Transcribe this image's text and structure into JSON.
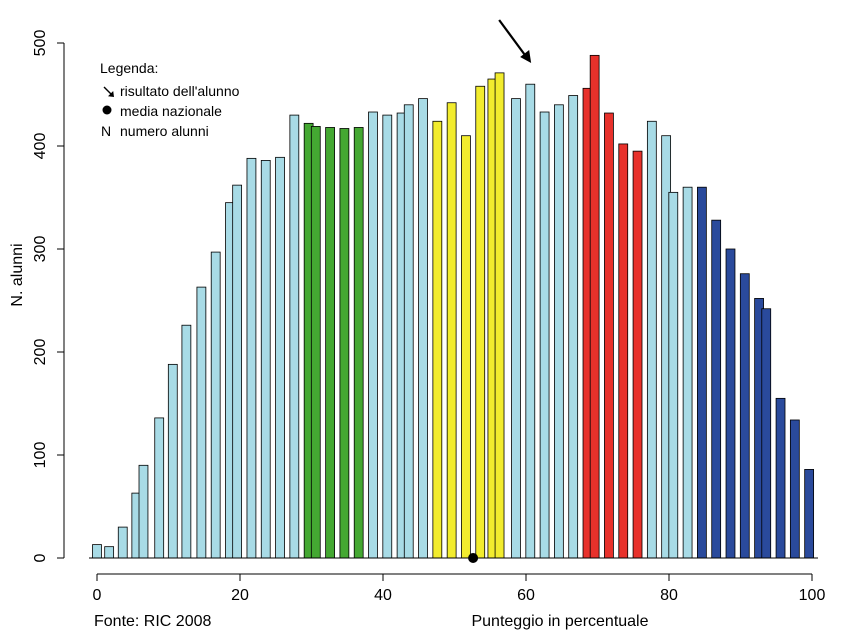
{
  "chart_data": {
    "type": "bar",
    "xlabel": "Punteggio in percentuale",
    "ylabel": "N. alunni",
    "source": "Fonte: RIC 2008",
    "xlim": [
      0,
      100
    ],
    "ylim": [
      0,
      500
    ],
    "x_ticks": [
      0,
      20,
      40,
      60,
      80,
      100
    ],
    "y_ticks": [
      0,
      100,
      200,
      300,
      400,
      500
    ],
    "bar_width_units": 1.25,
    "colors": {
      "lightblue": "#a8dbe6",
      "green": "#44a832",
      "yellow": "#f2ec2e",
      "red": "#e8312b",
      "darkblue": "#2a4a9c",
      "outline": "#000000"
    },
    "legend": {
      "title": "Legenda:",
      "items": [
        {
          "symbol": "arrow",
          "label": "risultato dell'alunno"
        },
        {
          "symbol": "dot",
          "label": "media nazionale"
        },
        {
          "symbol": "N",
          "label": "numero alunni"
        }
      ]
    },
    "national_mean_x": 52.6,
    "student_result_x": 61.0,
    "bars": [
      {
        "x": 0.0,
        "value": 13,
        "color": "lightblue"
      },
      {
        "x": 1.7,
        "value": 11,
        "color": "lightblue"
      },
      {
        "x": 3.6,
        "value": 30,
        "color": "lightblue"
      },
      {
        "x": 5.5,
        "value": 63,
        "color": "lightblue"
      },
      {
        "x": 6.5,
        "value": 90,
        "color": "lightblue"
      },
      {
        "x": 8.7,
        "value": 136,
        "color": "lightblue"
      },
      {
        "x": 10.6,
        "value": 188,
        "color": "lightblue"
      },
      {
        "x": 12.5,
        "value": 226,
        "color": "lightblue"
      },
      {
        "x": 14.6,
        "value": 263,
        "color": "lightblue"
      },
      {
        "x": 16.6,
        "value": 297,
        "color": "lightblue"
      },
      {
        "x": 18.6,
        "value": 345,
        "color": "lightblue"
      },
      {
        "x": 19.6,
        "value": 362,
        "color": "lightblue"
      },
      {
        "x": 21.6,
        "value": 388,
        "color": "lightblue"
      },
      {
        "x": 23.6,
        "value": 386,
        "color": "lightblue"
      },
      {
        "x": 25.6,
        "value": 389,
        "color": "lightblue"
      },
      {
        "x": 27.6,
        "value": 430,
        "color": "lightblue"
      },
      {
        "x": 29.6,
        "value": 422,
        "color": "green"
      },
      {
        "x": 30.6,
        "value": 419,
        "color": "green"
      },
      {
        "x": 32.6,
        "value": 418,
        "color": "green"
      },
      {
        "x": 34.6,
        "value": 417,
        "color": "green"
      },
      {
        "x": 36.6,
        "value": 418,
        "color": "green"
      },
      {
        "x": 38.6,
        "value": 433,
        "color": "lightblue"
      },
      {
        "x": 40.6,
        "value": 430,
        "color": "lightblue"
      },
      {
        "x": 42.6,
        "value": 432,
        "color": "lightblue"
      },
      {
        "x": 43.6,
        "value": 440,
        "color": "lightblue"
      },
      {
        "x": 45.6,
        "value": 446,
        "color": "lightblue"
      },
      {
        "x": 47.6,
        "value": 424,
        "color": "yellow"
      },
      {
        "x": 49.6,
        "value": 442,
        "color": "yellow"
      },
      {
        "x": 51.6,
        "value": 410,
        "color": "yellow"
      },
      {
        "x": 53.6,
        "value": 458,
        "color": "yellow"
      },
      {
        "x": 55.3,
        "value": 465,
        "color": "yellow"
      },
      {
        "x": 56.3,
        "value": 471,
        "color": "yellow"
      },
      {
        "x": 58.6,
        "value": 446,
        "color": "lightblue"
      },
      {
        "x": 60.6,
        "value": 460,
        "color": "lightblue"
      },
      {
        "x": 62.6,
        "value": 433,
        "color": "lightblue"
      },
      {
        "x": 64.6,
        "value": 440,
        "color": "lightblue"
      },
      {
        "x": 66.6,
        "value": 449,
        "color": "lightblue"
      },
      {
        "x": 68.6,
        "value": 456,
        "color": "red"
      },
      {
        "x": 69.6,
        "value": 488,
        "color": "red"
      },
      {
        "x": 71.6,
        "value": 432,
        "color": "red"
      },
      {
        "x": 73.6,
        "value": 402,
        "color": "red"
      },
      {
        "x": 75.6,
        "value": 395,
        "color": "red"
      },
      {
        "x": 77.6,
        "value": 424,
        "color": "lightblue"
      },
      {
        "x": 79.6,
        "value": 410,
        "color": "lightblue"
      },
      {
        "x": 80.6,
        "value": 355,
        "color": "lightblue"
      },
      {
        "x": 82.6,
        "value": 360,
        "color": "lightblue"
      },
      {
        "x": 84.6,
        "value": 360,
        "color": "darkblue"
      },
      {
        "x": 86.6,
        "value": 328,
        "color": "darkblue"
      },
      {
        "x": 88.6,
        "value": 300,
        "color": "darkblue"
      },
      {
        "x": 90.6,
        "value": 276,
        "color": "darkblue"
      },
      {
        "x": 92.6,
        "value": 252,
        "color": "darkblue"
      },
      {
        "x": 93.6,
        "value": 242,
        "color": "darkblue"
      },
      {
        "x": 95.6,
        "value": 155,
        "color": "darkblue"
      },
      {
        "x": 97.6,
        "value": 134,
        "color": "darkblue"
      },
      {
        "x": 99.6,
        "value": 86,
        "color": "darkblue"
      }
    ]
  }
}
